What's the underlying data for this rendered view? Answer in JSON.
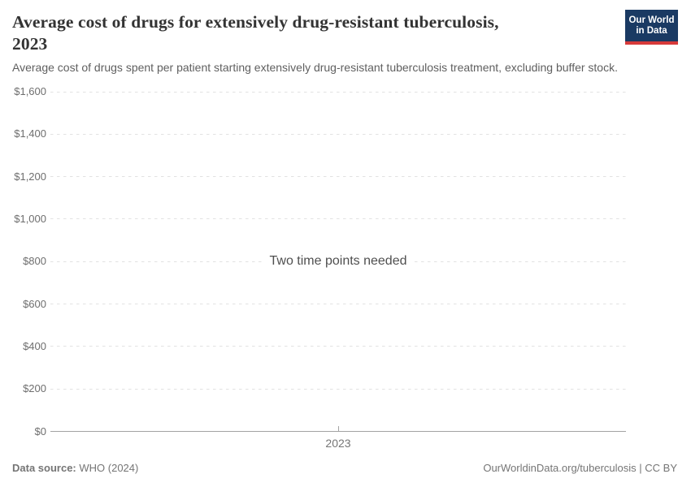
{
  "header": {
    "title_lines": [
      "Average cost of drugs for extensively drug-resistant tuberculosis,",
      "2023"
    ],
    "subtitle": "Average cost of drugs spent per patient starting extensively drug-resistant tuberculosis treatment, excluding buffer stock.",
    "logo": {
      "line1": "Our World",
      "line2": "in Data",
      "bg_color": "#1a3a63",
      "accent_color": "#d73a3a"
    }
  },
  "chart_data": {
    "type": "line",
    "title": "Average cost of drugs for extensively drug-resistant tuberculosis, 2023",
    "series": [],
    "empty_state_message": "Two time points needed",
    "ylim": [
      0,
      1600
    ],
    "y_tick_interval": 200,
    "y_tick_labels": [
      "$0",
      "$200",
      "$400",
      "$600",
      "$800",
      "$1,000",
      "$1,200",
      "$1,400",
      "$1,600"
    ],
    "x_tick_labels": [
      "2023"
    ],
    "grid": true,
    "gridline_style": "dashed",
    "gridline_color": "#e2e2e2",
    "axis_color": "#a3a3a3",
    "tick_label_color": "#6e6e6e"
  },
  "footer": {
    "source_label": "Data source:",
    "source_value": "WHO (2024)",
    "attribution": "OurWorldinData.org/tuberculosis | CC BY"
  }
}
